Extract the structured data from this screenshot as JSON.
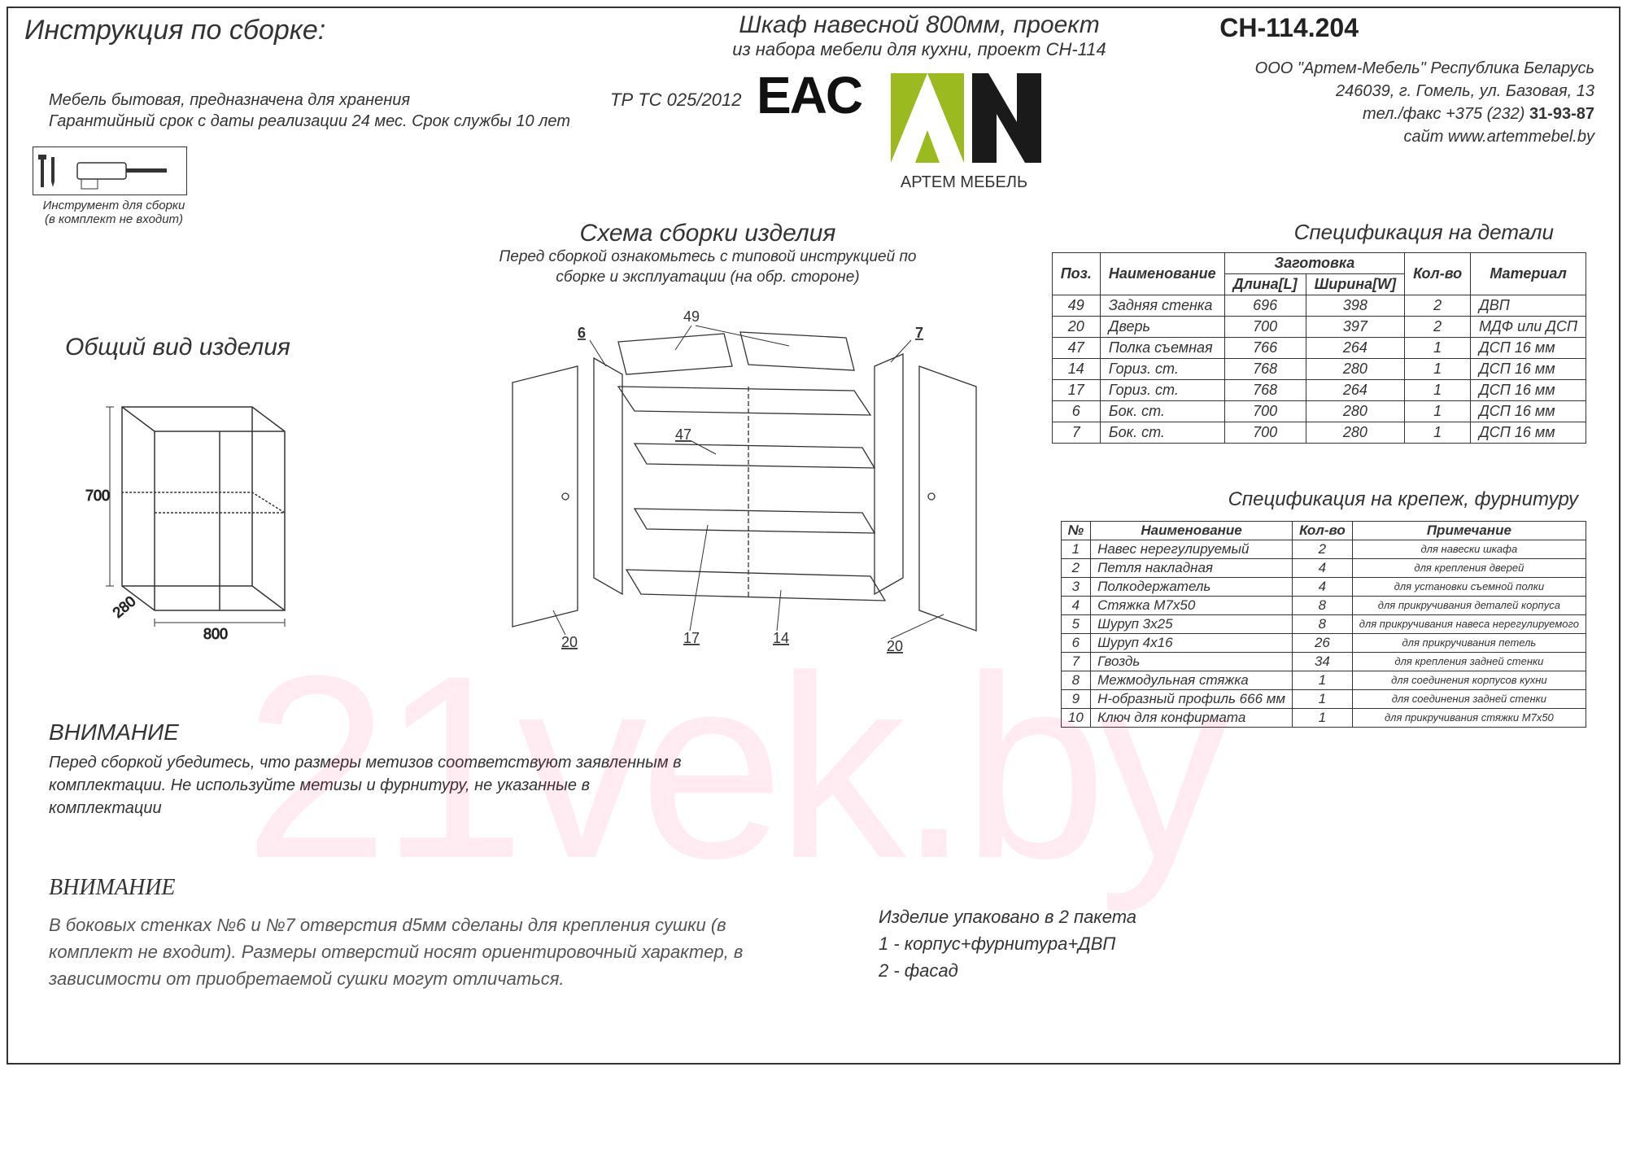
{
  "header": {
    "instruction_title": "Инструкция по сборке:",
    "product_line1": "Шкаф навесной 800мм, проект",
    "product_line2": "из набора мебели для кухни, проект СН-114",
    "project_code": "СH-114.204",
    "desc_line1": "Мебель бытовая, предназначена для хранения",
    "desc_line2": "Гарантийный срок с даты реализации 24 мес. Срок службы 10 лет",
    "trtc": "ТР ТС 025/2012",
    "eac": "EAC",
    "logo_brand": "АРТЕМ МЕБЕЛЬ"
  },
  "company": {
    "line1": "ООО \"Артем-Мебель\" Республика Беларусь",
    "line2": "246039, г. Гомель, ул. Базовая, 13",
    "line3_a": "тел./факс +375 (232) ",
    "line3_b": "31-93-87",
    "line4": "сайт  www.artemmebel.by"
  },
  "tools": {
    "caption1": "Инструмент для сборки",
    "caption2": "(в комплект не входит)"
  },
  "schema": {
    "title": "Схема сборки изделия",
    "sub1": "Перед сборкой ознакомьтесь с типовой инструкцией по",
    "sub2": "сборке и эксплуатации (на обр. стороне)"
  },
  "view_title": "Общий вид изделия",
  "cabinet_dims": {
    "h": "700",
    "w": "800",
    "d": "280"
  },
  "callouts": [
    "49",
    "6",
    "7",
    "47",
    "20",
    "17",
    "14",
    "20"
  ],
  "spec_parts": {
    "title": "Спецификация на детали",
    "headers": {
      "pos": "Поз.",
      "name": "Наименование",
      "blank": "Заготовка",
      "len": "Длина[L]",
      "wid": "Ширина[W]",
      "qty": "Кол-во",
      "mat": "Материал"
    },
    "rows": [
      {
        "pos": "49",
        "name": "Задняя стенка",
        "l": "696",
        "w": "398",
        "q": "2",
        "m": "ДВП"
      },
      {
        "pos": "20",
        "name": "Дверь",
        "l": "700",
        "w": "397",
        "q": "2",
        "m": "МДФ или ДСП"
      },
      {
        "pos": "47",
        "name": "Полка съемная",
        "l": "766",
        "w": "264",
        "q": "1",
        "m": "ДСП 16 мм"
      },
      {
        "pos": "14",
        "name": "Гориз. ст.",
        "l": "768",
        "w": "280",
        "q": "1",
        "m": "ДСП 16 мм"
      },
      {
        "pos": "17",
        "name": "Гориз. ст.",
        "l": "768",
        "w": "264",
        "q": "1",
        "m": "ДСП 16 мм"
      },
      {
        "pos": "6",
        "name": "Бок. ст.",
        "l": "700",
        "w": "280",
        "q": "1",
        "m": "ДСП 16 мм"
      },
      {
        "pos": "7",
        "name": "Бок. ст.",
        "l": "700",
        "w": "280",
        "q": "1",
        "m": "ДСП 16 мм"
      }
    ]
  },
  "spec_hw": {
    "title": "Спецификация на крепеж, фурнитуру",
    "headers": {
      "no": "№",
      "name": "Наименование",
      "qty": "Кол-во",
      "note": "Примечание"
    },
    "rows": [
      {
        "n": "1",
        "name": "Навес нерегулируемый",
        "q": "2",
        "note": "для навески шкафа"
      },
      {
        "n": "2",
        "name": "Петля накладная",
        "q": "4",
        "note": "для крепления дверей"
      },
      {
        "n": "3",
        "name": "Полкодержатель",
        "q": "4",
        "note": "для установки съемной полки"
      },
      {
        "n": "4",
        "name": "Стяжка М7х50",
        "q": "8",
        "note": "для прикручивания деталей корпуса"
      },
      {
        "n": "5",
        "name": "Шуруп 3х25",
        "q": "8",
        "note": "для прикручивания навеса нерегулируемого"
      },
      {
        "n": "6",
        "name": "Шуруп 4х16",
        "q": "26",
        "note": "для прикручивания петель"
      },
      {
        "n": "7",
        "name": "Гвоздь",
        "q": "34",
        "note": "для крепления задней стенки"
      },
      {
        "n": "8",
        "name": "Межмодульная стяжка",
        "q": "1",
        "note": "для соединения корпусов кухни"
      },
      {
        "n": "9",
        "name": "Н-образный профиль 666 мм",
        "q": "1",
        "note": "для соединения задней стенки"
      },
      {
        "n": "10",
        "name": "Ключ для конфирмата",
        "q": "1",
        "note": "для прикручивания стяжки М7х50"
      }
    ]
  },
  "warning1": {
    "h": "ВНИМАНИЕ",
    "t": "Перед сборкой убедитесь, что размеры метизов соответствуют заявленным в комплектации. Не используйте метизы и фурнитуру, не указанные в комплектации"
  },
  "warning2": {
    "h": "ВНИМАНИЕ",
    "t": "В боковых стенках №6 и №7 отверстия d5мм сделаны для крепления сушки (в комплект не входит). Размеры отверстий носят ориентировочный характер, в зависимости от приобретаемой сушки могут отличаться."
  },
  "packing": {
    "l1": "Изделие упаковано в 2 пакета",
    "l2": "1 - корпус+фурнитура+ДВП",
    "l3": "2 - фасад"
  },
  "watermark": "21vek.by"
}
